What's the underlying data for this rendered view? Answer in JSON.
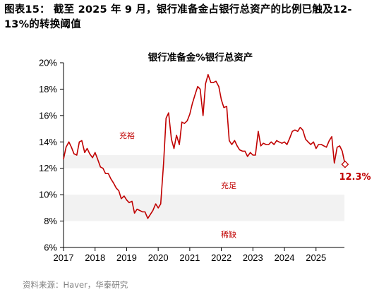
{
  "figure_title": "图表15： 截至 2025 年 9 月，银行准备金占银行总资产的比例已触及12-13%的转换阈值",
  "source": "资料来源：Haver，华泰研究",
  "colors": {
    "line": "#c00000",
    "band": "#f2f2f2",
    "axis": "#000000",
    "source_text": "#7f7f7f"
  },
  "chart_data": {
    "type": "line",
    "title": "银行准备金%银行总资产",
    "x_ticks": [
      "2017",
      "2018",
      "2019",
      "2020",
      "2021",
      "2022",
      "2023",
      "2024",
      "2025"
    ],
    "y_ticks": [
      "20%",
      "18%",
      "16%",
      "14%",
      "12%",
      "10%",
      "8%",
      "6%"
    ],
    "xlim": [
      2017.0,
      2025.9
    ],
    "ylim": [
      6,
      20
    ],
    "grid": false,
    "regimes": [
      {
        "label": "充裕",
        "y_range": [
          13,
          20
        ]
      },
      {
        "label": "充足",
        "y_range": [
          10,
          12
        ]
      },
      {
        "label": "稀缺",
        "y_range": [
          6,
          8
        ]
      }
    ],
    "end_label": "12.3%",
    "series": [
      {
        "values": [
          [
            2017.0,
            12.7
          ],
          [
            2017.08,
            13.6
          ],
          [
            2017.17,
            14.0
          ],
          [
            2017.25,
            13.6
          ],
          [
            2017.33,
            13.1
          ],
          [
            2017.42,
            13.0
          ],
          [
            2017.5,
            14.0
          ],
          [
            2017.58,
            14.1
          ],
          [
            2017.67,
            13.2
          ],
          [
            2017.75,
            13.5
          ],
          [
            2017.83,
            13.1
          ],
          [
            2017.92,
            12.8
          ],
          [
            2018.0,
            13.2
          ],
          [
            2018.08,
            12.7
          ],
          [
            2018.17,
            12.1
          ],
          [
            2018.25,
            12.0
          ],
          [
            2018.33,
            11.6
          ],
          [
            2018.42,
            11.6
          ],
          [
            2018.5,
            11.2
          ],
          [
            2018.58,
            10.9
          ],
          [
            2018.67,
            10.5
          ],
          [
            2018.75,
            10.3
          ],
          [
            2018.83,
            9.7
          ],
          [
            2018.92,
            9.9
          ],
          [
            2019.0,
            9.6
          ],
          [
            2019.08,
            9.4
          ],
          [
            2019.17,
            9.5
          ],
          [
            2019.25,
            8.6
          ],
          [
            2019.33,
            8.9
          ],
          [
            2019.42,
            8.8
          ],
          [
            2019.5,
            8.7
          ],
          [
            2019.58,
            8.7
          ],
          [
            2019.67,
            8.2
          ],
          [
            2019.75,
            8.5
          ],
          [
            2019.83,
            8.8
          ],
          [
            2019.92,
            9.3
          ],
          [
            2020.0,
            9.0
          ],
          [
            2020.08,
            9.3
          ],
          [
            2020.17,
            12.4
          ],
          [
            2020.25,
            15.8
          ],
          [
            2020.33,
            16.2
          ],
          [
            2020.42,
            14.2
          ],
          [
            2020.5,
            13.5
          ],
          [
            2020.58,
            14.5
          ],
          [
            2020.67,
            13.8
          ],
          [
            2020.75,
            15.5
          ],
          [
            2020.83,
            15.4
          ],
          [
            2020.92,
            15.6
          ],
          [
            2021.0,
            16.1
          ],
          [
            2021.08,
            16.9
          ],
          [
            2021.17,
            17.6
          ],
          [
            2021.25,
            18.2
          ],
          [
            2021.33,
            18.0
          ],
          [
            2021.42,
            16.0
          ],
          [
            2021.5,
            18.4
          ],
          [
            2021.58,
            19.1
          ],
          [
            2021.67,
            18.5
          ],
          [
            2021.75,
            18.5
          ],
          [
            2021.83,
            18.6
          ],
          [
            2021.92,
            18.2
          ],
          [
            2022.0,
            17.2
          ],
          [
            2022.08,
            16.6
          ],
          [
            2022.17,
            16.7
          ],
          [
            2022.25,
            14.1
          ],
          [
            2022.33,
            13.8
          ],
          [
            2022.42,
            14.1
          ],
          [
            2022.5,
            13.7
          ],
          [
            2022.58,
            13.4
          ],
          [
            2022.67,
            13.3
          ],
          [
            2022.75,
            13.3
          ],
          [
            2022.83,
            12.9
          ],
          [
            2022.92,
            13.2
          ],
          [
            2023.0,
            13.0
          ],
          [
            2023.08,
            13.0
          ],
          [
            2023.17,
            14.8
          ],
          [
            2023.25,
            13.7
          ],
          [
            2023.33,
            13.9
          ],
          [
            2023.42,
            13.8
          ],
          [
            2023.5,
            13.8
          ],
          [
            2023.58,
            14.0
          ],
          [
            2023.67,
            13.8
          ],
          [
            2023.75,
            14.1
          ],
          [
            2023.83,
            14.0
          ],
          [
            2023.92,
            13.9
          ],
          [
            2024.0,
            14.0
          ],
          [
            2024.08,
            13.8
          ],
          [
            2024.17,
            14.3
          ],
          [
            2024.25,
            14.8
          ],
          [
            2024.33,
            14.9
          ],
          [
            2024.42,
            14.8
          ],
          [
            2024.5,
            15.1
          ],
          [
            2024.58,
            14.9
          ],
          [
            2024.67,
            14.2
          ],
          [
            2024.75,
            14.0
          ],
          [
            2024.83,
            13.8
          ],
          [
            2024.92,
            14.0
          ],
          [
            2025.0,
            13.5
          ],
          [
            2025.08,
            13.8
          ],
          [
            2025.17,
            13.8
          ],
          [
            2025.25,
            13.7
          ],
          [
            2025.33,
            13.6
          ],
          [
            2025.42,
            14.1
          ],
          [
            2025.5,
            14.4
          ],
          [
            2025.58,
            12.4
          ],
          [
            2025.67,
            13.6
          ],
          [
            2025.75,
            13.7
          ],
          [
            2025.83,
            13.3
          ],
          [
            2025.92,
            12.3
          ]
        ]
      }
    ]
  }
}
